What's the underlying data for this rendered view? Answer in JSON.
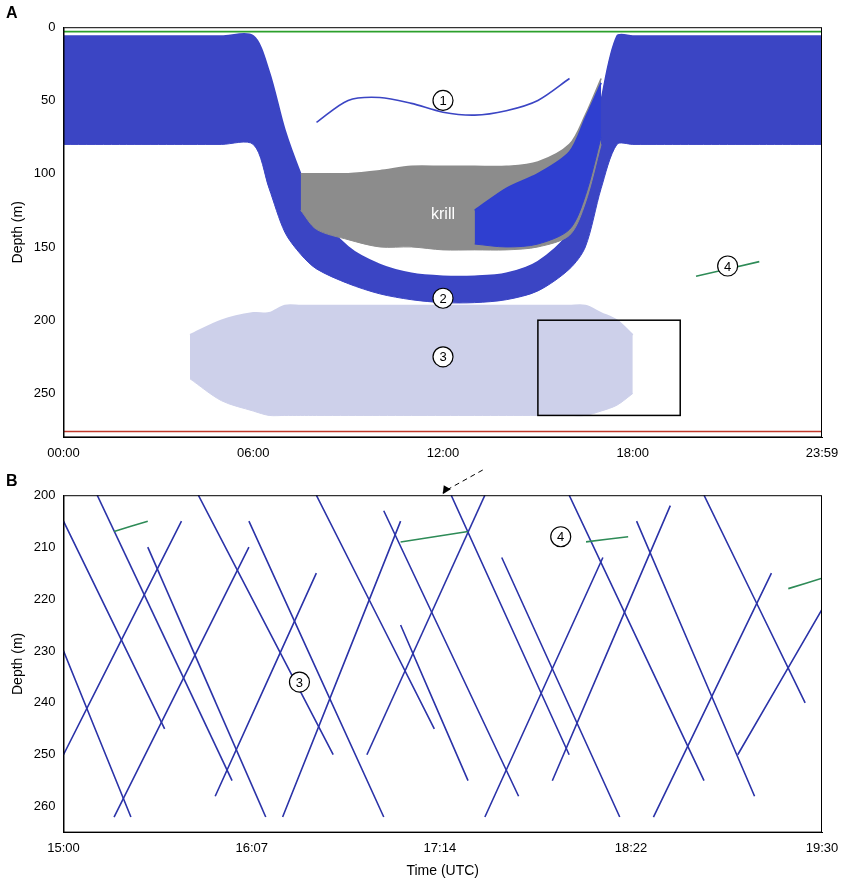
{
  "chart_data": [
    {
      "type": "line",
      "title": "A",
      "ylabel": "Depth (m)",
      "grid": false,
      "x": [
        0,
        2,
        4,
        5,
        6,
        6.5,
        7,
        7.5,
        8,
        9,
        10,
        11,
        12,
        13,
        14,
        15,
        16,
        16.5,
        17,
        17.5,
        18,
        20,
        22,
        23.983
      ],
      "xlim": [
        0,
        23.983
      ],
      "xticks": [
        {
          "value": 0,
          "label": "00:00"
        },
        {
          "value": 6,
          "label": "06:00"
        },
        {
          "value": 12,
          "label": "12:00"
        },
        {
          "value": 18,
          "label": "18:00"
        },
        {
          "value": 23.983,
          "label": "23:59"
        }
      ],
      "ylim": [
        0,
        280
      ],
      "yticks": [
        0,
        50,
        100,
        150,
        200,
        250
      ],
      "series": [
        {
          "color": "#cdd0ea",
          "values": [
            null,
            null,
            210,
            200,
            195,
            195,
            190,
            190,
            190,
            190,
            190,
            190,
            190,
            190,
            190,
            190,
            190,
            190,
            195,
            200,
            210,
            null,
            null,
            null
          ]
        },
        {
          "color": "#cdd0ea",
          "type": "area",
          "values": [
            null,
            null,
            240,
            255,
            262,
            265,
            265,
            265,
            265,
            265,
            265,
            265,
            265,
            265,
            265,
            265,
            265,
            265,
            262,
            258,
            250,
            null,
            null,
            null
          ]
        },
        {
          "color": "#3b45c4",
          "values": [
            6,
            6,
            6,
            6,
            6,
            30,
            70,
            100,
            125,
            150,
            162,
            168,
            170,
            170,
            168,
            160,
            140,
            110,
            50,
            6,
            6,
            6,
            6,
            6
          ]
        },
        {
          "color": "#3b45c4",
          "type": "area",
          "values": [
            80,
            80,
            80,
            80,
            80,
            110,
            140,
            155,
            165,
            175,
            182,
            186,
            188,
            188,
            186,
            180,
            165,
            150,
            110,
            80,
            80,
            80,
            80,
            80
          ]
        },
        {
          "color": "#8c8c8c",
          "values": [
            null,
            null,
            null,
            null,
            null,
            null,
            null,
            100,
            100,
            100,
            98,
            95,
            95,
            95,
            95,
            92,
            80,
            60,
            35,
            null,
            null,
            null,
            null,
            null
          ]
        },
        {
          "color": "#8c8c8c",
          "type": "area",
          "values": [
            null,
            null,
            null,
            null,
            null,
            null,
            null,
            125,
            138,
            145,
            150,
            150,
            152,
            152,
            152,
            150,
            142,
            120,
            80,
            null,
            null,
            null,
            null,
            null
          ]
        },
        {
          "color": "#2f3fd0",
          "values": [
            null,
            null,
            null,
            null,
            null,
            null,
            null,
            null,
            null,
            null,
            null,
            null,
            null,
            125,
            110,
            100,
            85,
            62,
            38,
            null,
            null,
            null,
            null,
            null
          ]
        },
        {
          "color": "#2f3fd0",
          "type": "area",
          "values": [
            null,
            null,
            null,
            null,
            null,
            null,
            null,
            null,
            null,
            null,
            null,
            null,
            null,
            148,
            150,
            148,
            138,
            115,
            75,
            null,
            null,
            null,
            null,
            null
          ]
        },
        {
          "color": "#3b45c4",
          "values": [
            null,
            null,
            null,
            null,
            null,
            null,
            null,
            null,
            65,
            50,
            48,
            52,
            58,
            60,
            57,
            50,
            35,
            null,
            null,
            null,
            null,
            null,
            null,
            null
          ]
        },
        {
          "color": "#2e8b57",
          "values": [
            null,
            null,
            null,
            null,
            null,
            null,
            null,
            null,
            null,
            null,
            null,
            null,
            null,
            null,
            null,
            null,
            null,
            null,
            null,
            null,
            null,
            170,
            160,
            null
          ]
        },
        {
          "color": "#2ca02c",
          "values": [
            3,
            3,
            3,
            3,
            3,
            3,
            3,
            3,
            3,
            3,
            3,
            3,
            3,
            3,
            3,
            3,
            3,
            3,
            3,
            3,
            3,
            3,
            3,
            3
          ]
        },
        {
          "color": "#c0392b",
          "values": [
            276,
            276,
            276,
            276,
            276,
            276,
            276,
            276,
            276,
            276,
            276,
            276,
            276,
            276,
            276,
            276,
            276,
            276,
            276,
            276,
            276,
            276,
            276,
            276
          ]
        }
      ],
      "annotations": [
        {
          "text": "1",
          "x": 12,
          "y": 50,
          "marker": "circle"
        },
        {
          "text": "krill",
          "x": 12,
          "y": 128,
          "color": "#ffffff"
        },
        {
          "text": "2",
          "x": 12,
          "y": 185,
          "marker": "circle"
        },
        {
          "text": "3",
          "x": 12,
          "y": 225,
          "marker": "circle"
        },
        {
          "text": "4",
          "x": 21,
          "y": 163,
          "marker": "circle"
        }
      ]
    },
    {
      "type": "line",
      "title": "B",
      "xlabel": "Time (UTC)",
      "ylabel": "Depth (m)",
      "grid": false,
      "xlim": [
        15,
        19.5
      ],
      "xticks": [
        {
          "value": 15,
          "label": "15:00"
        },
        {
          "value": 16.117,
          "label": "16:07"
        },
        {
          "value": 17.233,
          "label": "17:14"
        },
        {
          "value": 18.367,
          "label": "18:22"
        },
        {
          "value": 19.5,
          "label": "19:30"
        }
      ],
      "ylim": [
        200,
        265
      ],
      "yticks": [
        200,
        210,
        220,
        230,
        240,
        250,
        260
      ],
      "series": [
        {
          "color": "#2b33a8",
          "x": [
            15.0,
            15.6
          ],
          "values": [
            205,
            245
          ]
        },
        {
          "color": "#2b33a8",
          "x": [
            15.2,
            16.0
          ],
          "values": [
            200,
            255
          ]
        },
        {
          "color": "#2b33a8",
          "x": [
            15.5,
            16.2
          ],
          "values": [
            210,
            262
          ]
        },
        {
          "color": "#2b33a8",
          "x": [
            15.8,
            16.6
          ],
          "values": [
            200,
            250
          ]
        },
        {
          "color": "#2b33a8",
          "x": [
            16.1,
            16.9
          ],
          "values": [
            205,
            262
          ]
        },
        {
          "color": "#2b33a8",
          "x": [
            16.5,
            17.2
          ],
          "values": [
            200,
            245
          ]
        },
        {
          "color": "#2b33a8",
          "x": [
            16.9,
            17.7
          ],
          "values": [
            203,
            258
          ]
        },
        {
          "color": "#2b33a8",
          "x": [
            17.3,
            18.0
          ],
          "values": [
            200,
            250
          ]
        },
        {
          "color": "#2b33a8",
          "x": [
            17.6,
            18.3
          ],
          "values": [
            212,
            262
          ]
        },
        {
          "color": "#2b33a8",
          "x": [
            18.0,
            18.8
          ],
          "values": [
            200,
            255
          ]
        },
        {
          "color": "#2b33a8",
          "x": [
            18.4,
            19.1
          ],
          "values": [
            205,
            258
          ]
        },
        {
          "color": "#2b33a8",
          "x": [
            18.8,
            19.4
          ],
          "values": [
            200,
            240
          ]
        },
        {
          "color": "#2b33a8",
          "x": [
            15.0,
            15.4
          ],
          "values": [
            230,
            262
          ]
        },
        {
          "color": "#2b33a8",
          "x": [
            17.0,
            17.4
          ],
          "values": [
            225,
            255
          ]
        },
        {
          "color": "#2b33a8",
          "x": [
            15.0,
            15.7
          ],
          "values": [
            250,
            205
          ]
        },
        {
          "color": "#2b33a8",
          "x": [
            15.3,
            16.1
          ],
          "values": [
            262,
            210
          ]
        },
        {
          "color": "#2b33a8",
          "x": [
            15.9,
            16.5
          ],
          "values": [
            258,
            215
          ]
        },
        {
          "color": "#2b33a8",
          "x": [
            16.3,
            17.0
          ],
          "values": [
            262,
            205
          ]
        },
        {
          "color": "#2b33a8",
          "x": [
            16.8,
            17.5
          ],
          "values": [
            250,
            200
          ]
        },
        {
          "color": "#2b33a8",
          "x": [
            17.5,
            18.2
          ],
          "values": [
            262,
            212
          ]
        },
        {
          "color": "#2b33a8",
          "x": [
            17.9,
            18.6
          ],
          "values": [
            255,
            202
          ]
        },
        {
          "color": "#2b33a8",
          "x": [
            18.5,
            19.2
          ],
          "values": [
            262,
            215
          ]
        },
        {
          "color": "#2b33a8",
          "x": [
            19.0,
            19.5
          ],
          "values": [
            250,
            222
          ]
        },
        {
          "color": "#2e8b57",
          "x": [
            17.0,
            17.4
          ],
          "values": [
            209,
            207
          ]
        },
        {
          "color": "#2e8b57",
          "x": [
            18.1,
            18.35
          ],
          "values": [
            209,
            208
          ]
        },
        {
          "color": "#2e8b57",
          "x": [
            19.3,
            19.5
          ],
          "values": [
            218,
            216
          ]
        },
        {
          "color": "#2e8b57",
          "x": [
            15.3,
            15.5
          ],
          "values": [
            207,
            205
          ]
        }
      ],
      "annotations": [
        {
          "text": "4",
          "x": 17.95,
          "y": 208,
          "marker": "circle"
        },
        {
          "text": "3",
          "x": 16.4,
          "y": 236,
          "marker": "circle"
        }
      ]
    }
  ]
}
